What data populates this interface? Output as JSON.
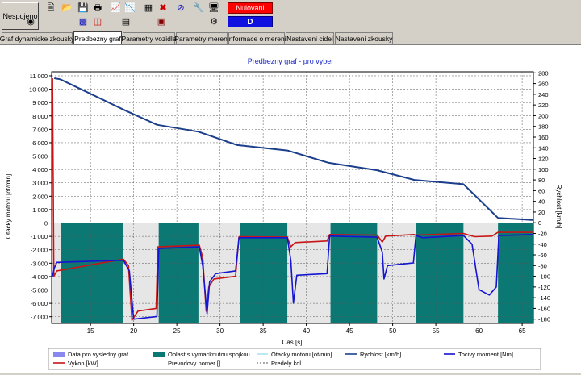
{
  "toolbar": {
    "connection_label": "Nespojeno",
    "nulovani_label": "Nulovani",
    "d_label": "D",
    "icons": [
      "new-icon",
      "open-icon",
      "save-icon",
      "print-icon",
      "chart-icon",
      "chart-line-icon",
      "table-icon",
      "cross-icon",
      "no-entry-icon",
      "tools-icon",
      "monitor-icon",
      "dial-icon",
      "bars-icon",
      "window-icon",
      "chart-export-icon",
      "dashboard-icon"
    ]
  },
  "tabs": [
    {
      "label": "Graf dynamicke zkousky"
    },
    {
      "label": "Predbezny graf"
    },
    {
      "label": "Parametry vozidla"
    },
    {
      "label": "Parametry mereni"
    },
    {
      "label": "Informace o mereni"
    },
    {
      "label": "Nastaveni cidel"
    },
    {
      "label": "Nastaveni zkousky"
    }
  ],
  "chart_data": {
    "type": "line",
    "title": "Predbezny graf - pro vyber",
    "xlabel": "Cas [s]",
    "ylabel_left": "Otacky motoru [ot/min]",
    "ylabel_right": "Rychlost [km/h]",
    "xlim": [
      10.5,
      66.3
    ],
    "x_ticks": [
      15,
      20,
      25,
      30,
      35,
      40,
      45,
      50,
      55,
      60,
      65
    ],
    "ylim_left": [
      -7500,
      11300
    ],
    "y_ticks_left": [
      11000,
      10000,
      9000,
      8000,
      7000,
      6000,
      5000,
      4000,
      3000,
      2000,
      1000,
      0,
      -1000,
      -2000,
      -3000,
      -4000,
      -5000,
      -6000,
      -7000
    ],
    "ylim_right": [
      -188,
      282
    ],
    "y_ticks_right": [
      280,
      260,
      240,
      220,
      200,
      180,
      160,
      140,
      120,
      100,
      80,
      60,
      40,
      20,
      0,
      -20,
      -40,
      -60,
      -80,
      -100,
      -120,
      -140,
      -160,
      -180
    ],
    "clutch_regions": [
      [
        11.6,
        18.8
      ],
      [
        22.9,
        27.5
      ],
      [
        32.3,
        37.8
      ],
      [
        42.8,
        48.2
      ],
      [
        52.7,
        58.2
      ],
      [
        62.2,
        66.3
      ]
    ],
    "series": [
      {
        "name": "Rychlost [km/h]",
        "color": "#1c3f8c",
        "x": [
          10.8,
          11.5,
          19.0,
          22.7,
          27.5,
          32.0,
          37.8,
          42.6,
          48.2,
          52.5,
          58.2,
          62.2,
          66.3
        ],
        "values": [
          270,
          268,
          210,
          183,
          170,
          145,
          135,
          112,
          98,
          80,
          72,
          9,
          5
        ]
      },
      {
        "name": "Vykon [kW]",
        "color": "#c81414",
        "x": [
          10.6,
          10.75,
          11.1,
          18.8,
          19.4,
          19.8,
          20.5,
          22.6,
          22.8,
          27.6,
          28.0,
          28.4,
          28.7,
          29.3,
          31.8,
          32.2,
          37.8,
          38.2,
          38.7,
          42.4,
          42.7,
          48.2,
          48.8,
          49.2,
          52.4,
          52.7,
          58.2,
          59.5,
          61.5,
          62.2,
          66.3
        ],
        "values": [
          270,
          -100,
          -90,
          -68,
          -80,
          -182,
          -165,
          -160,
          -45,
          -42,
          -65,
          -165,
          -120,
          -105,
          -100,
          -26,
          -27,
          -45,
          -37,
          -34,
          -22,
          -23,
          -36,
          -25,
          -22,
          -23,
          -20,
          -26,
          -25,
          -18,
          -18
        ]
      },
      {
        "name": "Tocivy moment [Nm]",
        "color": "#1414d2",
        "x": [
          10.6,
          10.8,
          11.1,
          18.8,
          19.5,
          20.0,
          22.7,
          22.9,
          27.6,
          28.0,
          28.5,
          28.8,
          29.5,
          31.8,
          32.2,
          37.8,
          38.2,
          38.5,
          38.9,
          42.4,
          42.7,
          48.2,
          48.8,
          49.0,
          49.4,
          52.4,
          52.7,
          53.5,
          58.2,
          59.2,
          60.0,
          61.2,
          62.0,
          62.3,
          66.3
        ],
        "values": [
          -100,
          -85,
          -74,
          -70,
          -90,
          -180,
          -175,
          -48,
          -45,
          -80,
          -170,
          -110,
          -95,
          -90,
          -28,
          -28,
          -70,
          -150,
          -98,
          -95,
          -25,
          -27,
          -55,
          -105,
          -80,
          -75,
          -24,
          -28,
          -24,
          -40,
          -125,
          -135,
          -120,
          -24,
          -22
        ]
      }
    ],
    "legend": [
      {
        "label": "Data pro vysledny graf",
        "kind": "swatch",
        "color": "#8888ee"
      },
      {
        "label": "Oblast s vymacknutou spojkou",
        "kind": "swatch",
        "color": "#0b7873"
      },
      {
        "label": "Otacky motoru [ot/min]",
        "kind": "line",
        "color": "#a8e6f0"
      },
      {
        "label": "Rychlost [km/h]",
        "kind": "line",
        "color": "#1c3f8c"
      },
      {
        "label": "Tocivy moment [Nm]",
        "kind": "line",
        "color": "#1414d2"
      },
      {
        "label": "Vykon [kW]",
        "kind": "line",
        "color": "#c81414"
      },
      {
        "label": "Prevodovy pomer []",
        "kind": "none",
        "color": "#ffffff"
      },
      {
        "label": "Predely kol",
        "kind": "dash",
        "color": "#555555"
      }
    ]
  }
}
